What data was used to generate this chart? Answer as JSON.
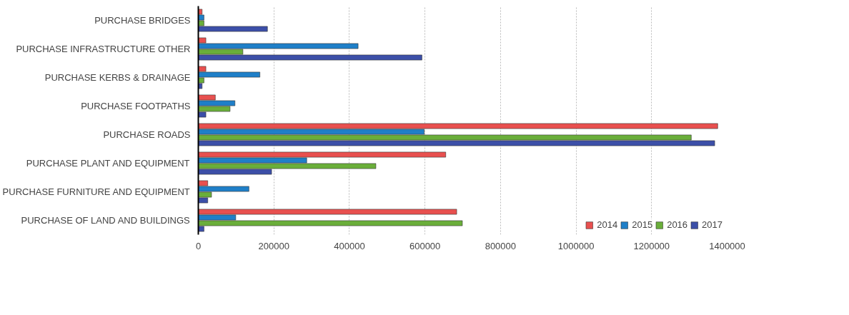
{
  "chart_data": {
    "type": "bar",
    "orientation": "horizontal",
    "categories": [
      "PURCHASE BRIDGES",
      "PURCHASE INFRASTRUCTURE OTHER",
      "PURCHASE KERBS & DRAINAGE",
      "PURCHASE FOOTPATHS",
      "PURCHASE ROADS",
      "PURCHASE PLANT AND EQUIPMENT",
      "PURCHASE FURNITURE AND EQUIPMENT",
      "PURCHASE OF LAND AND BUILDINGS"
    ],
    "series": [
      {
        "name": "2014",
        "color": "#e8504f",
        "values": [
          10000,
          20000,
          20000,
          45000,
          1375000,
          655000,
          25000,
          684000
        ]
      },
      {
        "name": "2015",
        "color": "#1f7fc8",
        "values": [
          15000,
          423000,
          163000,
          97000,
          598000,
          287000,
          134000,
          99000
        ]
      },
      {
        "name": "2016",
        "color": "#6aae3a",
        "values": [
          15000,
          118000,
          15000,
          84000,
          1305000,
          470000,
          35000,
          699000
        ]
      },
      {
        "name": "2017",
        "color": "#3c4fa8",
        "values": [
          183000,
          592000,
          10000,
          20000,
          1367000,
          194000,
          25000,
          15000
        ]
      }
    ],
    "xlim": [
      0,
      1400000
    ],
    "xticks": [
      0,
      200000,
      400000,
      600000,
      800000,
      1000000,
      1200000,
      1400000
    ],
    "grid": "x",
    "legend": "bottom right"
  }
}
